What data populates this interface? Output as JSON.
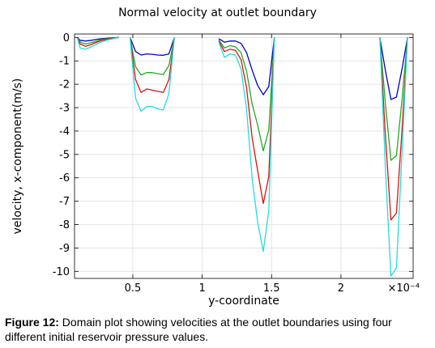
{
  "chart_data": {
    "type": "line",
    "title": "Normal velocity at outlet boundary",
    "xlabel": "y-coordinate",
    "ylabel": "velocity, x-component(m/s)",
    "x_scale_label": "×10⁻⁴",
    "x_multiplier": 0.0001,
    "xlim": [
      0.08,
      2.52
    ],
    "ylim": [
      -10.3,
      0.15
    ],
    "x_ticks": [
      0.5,
      1,
      1.5,
      2
    ],
    "x_tick_labels": [
      "0.5",
      "1",
      "1.5",
      "2"
    ],
    "y_ticks": [
      0,
      -1,
      -2,
      -3,
      -4,
      -5,
      -6,
      -7,
      -8,
      -9,
      -10
    ],
    "y_tick_labels": [
      "0",
      "-1",
      "-2",
      "-3",
      "-4",
      "-5",
      "-6",
      "-7",
      "-8",
      "-9",
      "-10"
    ],
    "grid": true,
    "legend": "none",
    "series": [
      {
        "color": "#0000cc",
        "segments": [
          {
            "x": [
              0.1,
              0.12,
              0.16,
              0.2,
              0.24,
              0.28,
              0.32,
              0.36,
              0.4
            ],
            "y": [
              0,
              -0.12,
              -0.15,
              -0.12,
              -0.08,
              -0.05,
              -0.03,
              -0.01,
              0
            ]
          },
          {
            "x": [
              0.48,
              0.52,
              0.56,
              0.6,
              0.64,
              0.68,
              0.72,
              0.76,
              0.8
            ],
            "y": [
              0,
              -0.6,
              -0.75,
              -0.7,
              -0.72,
              -0.75,
              -0.76,
              -0.7,
              0
            ]
          },
          {
            "x": [
              1.12,
              1.16,
              1.2,
              1.24,
              1.28,
              1.32,
              1.36,
              1.4,
              1.44,
              1.48,
              1.52
            ],
            "y": [
              -0.05,
              -0.2,
              -0.15,
              -0.15,
              -0.25,
              -0.65,
              -1.4,
              -2.05,
              -2.45,
              -2.1,
              0
            ]
          },
          {
            "x": [
              2.28,
              2.32,
              2.36,
              2.4,
              2.44,
              2.48
            ],
            "y": [
              0,
              -1.4,
              -2.65,
              -2.55,
              -1.35,
              0
            ]
          }
        ]
      },
      {
        "color": "#22aa22",
        "segments": [
          {
            "x": [
              0.1,
              0.12,
              0.16,
              0.2,
              0.24,
              0.28,
              0.32,
              0.36,
              0.4
            ],
            "y": [
              0,
              -0.2,
              -0.28,
              -0.22,
              -0.15,
              -0.08,
              -0.05,
              -0.02,
              0
            ]
          },
          {
            "x": [
              0.48,
              0.52,
              0.56,
              0.6,
              0.64,
              0.68,
              0.72,
              0.76,
              0.8
            ],
            "y": [
              0,
              -1.25,
              -1.6,
              -1.5,
              -1.5,
              -1.55,
              -1.58,
              -1.2,
              0
            ]
          },
          {
            "x": [
              1.12,
              1.16,
              1.2,
              1.24,
              1.28,
              1.32,
              1.36,
              1.4,
              1.44,
              1.48,
              1.52
            ],
            "y": [
              -0.1,
              -0.45,
              -0.35,
              -0.4,
              -0.65,
              -1.45,
              -2.85,
              -3.75,
              -4.85,
              -3.95,
              0
            ]
          },
          {
            "x": [
              2.28,
              2.32,
              2.36,
              2.4,
              2.44,
              2.48
            ],
            "y": [
              0,
              -2.8,
              -5.25,
              -5.05,
              -2.65,
              0
            ]
          }
        ]
      },
      {
        "color": "#dd1111",
        "segments": [
          {
            "x": [
              0.1,
              0.12,
              0.16,
              0.2,
              0.24,
              0.28,
              0.32,
              0.36,
              0.4
            ],
            "y": [
              0,
              -0.28,
              -0.38,
              -0.3,
              -0.2,
              -0.12,
              -0.07,
              -0.03,
              0
            ]
          },
          {
            "x": [
              0.48,
              0.52,
              0.56,
              0.6,
              0.64,
              0.68,
              0.72,
              0.76,
              0.8
            ],
            "y": [
              0,
              -1.8,
              -2.35,
              -2.2,
              -2.25,
              -2.3,
              -2.35,
              -1.8,
              0
            ]
          },
          {
            "x": [
              1.12,
              1.16,
              1.2,
              1.24,
              1.28,
              1.32,
              1.36,
              1.4,
              1.44,
              1.48,
              1.52
            ],
            "y": [
              -0.15,
              -0.6,
              -0.5,
              -0.55,
              -0.95,
              -2.15,
              -4.3,
              -5.7,
              -7.1,
              -5.95,
              0
            ]
          },
          {
            "x": [
              2.28,
              2.32,
              2.36,
              2.4,
              2.44,
              2.48
            ],
            "y": [
              0,
              -4.15,
              -7.8,
              -7.5,
              -3.95,
              0
            ]
          }
        ]
      },
      {
        "color": "#22dddd",
        "segments": [
          {
            "x": [
              0.1,
              0.12,
              0.16,
              0.2,
              0.24,
              0.28,
              0.32,
              0.36,
              0.4
            ],
            "y": [
              0,
              -0.45,
              -0.5,
              -0.4,
              -0.28,
              -0.18,
              -0.1,
              -0.05,
              0
            ]
          },
          {
            "x": [
              0.48,
              0.52,
              0.56,
              0.6,
              0.64,
              0.68,
              0.72,
              0.76,
              0.8
            ],
            "y": [
              0,
              -2.6,
              -3.15,
              -2.95,
              -2.95,
              -3.05,
              -3.1,
              -2.4,
              0
            ]
          },
          {
            "x": [
              1.12,
              1.16,
              1.2,
              1.24,
              1.28,
              1.32,
              1.36,
              1.4,
              1.44,
              1.48,
              1.52
            ],
            "y": [
              -0.2,
              -0.85,
              -0.7,
              -0.75,
              -1.35,
              -3.05,
              -6.05,
              -7.9,
              -9.15,
              -7.4,
              0
            ]
          },
          {
            "x": [
              2.28,
              2.32,
              2.36,
              2.4,
              2.44,
              2.48
            ],
            "y": [
              0,
              -5.55,
              -10.2,
              -9.85,
              -4.9,
              0
            ]
          }
        ]
      }
    ]
  },
  "caption": {
    "label": "Figure 12:",
    "text": " Domain plot showing velocities at the outlet boundaries using four different initial reservoir pressure values."
  }
}
